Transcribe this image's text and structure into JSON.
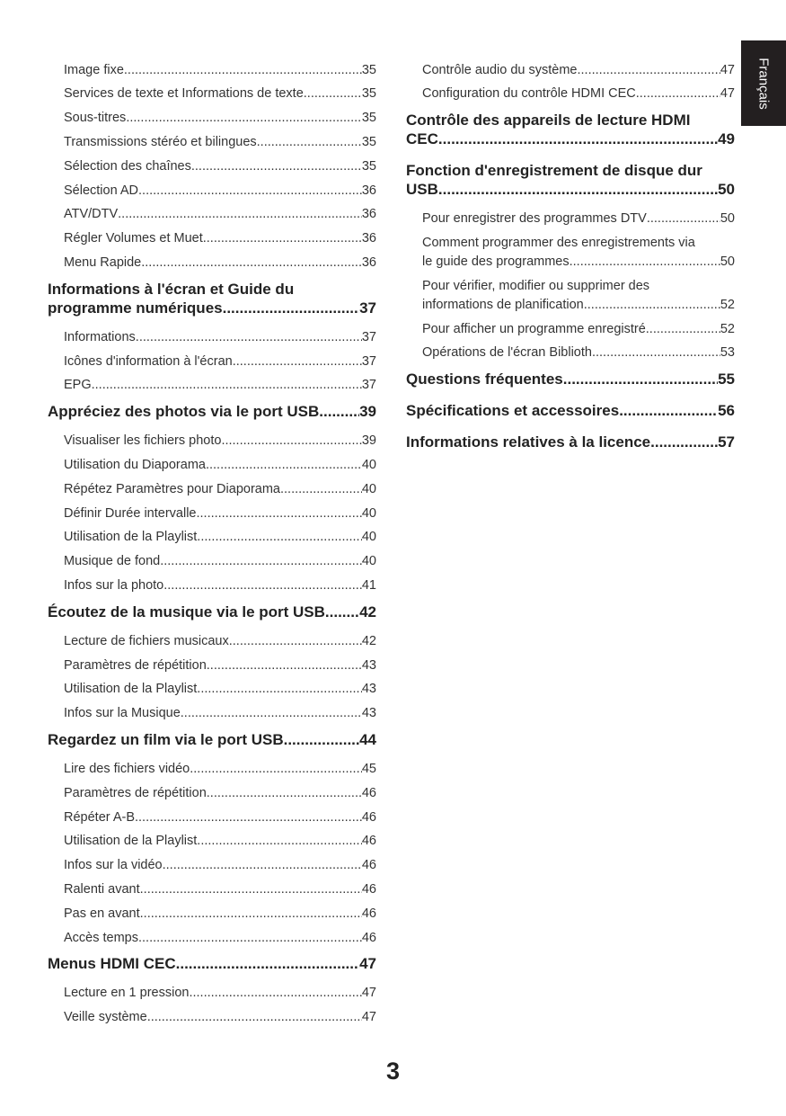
{
  "side_tab": {
    "label": "Français"
  },
  "page_number": "3",
  "left": [
    {
      "type": "item",
      "title": "Image fixe",
      "page": "35"
    },
    {
      "type": "item",
      "title": "Services de texte et Informations de texte",
      "page": "35"
    },
    {
      "type": "item",
      "title": "Sous-titres",
      "page": "35"
    },
    {
      "type": "item",
      "title": "Transmissions stéréo et bilingues",
      "page": "35"
    },
    {
      "type": "item",
      "title": "Sélection des chaînes",
      "page": "35"
    },
    {
      "type": "item",
      "title": "Sélection AD",
      "page": "36"
    },
    {
      "type": "item",
      "title": "ATV/DTV",
      "page": "36"
    },
    {
      "type": "item",
      "title": "Régler Volumes et Muet",
      "page": "36"
    },
    {
      "type": "item",
      "title": "Menu Rapide",
      "page": "36"
    },
    {
      "type": "heading",
      "title": "Informations à l'écran et Guide du",
      "title2": "programme numériques",
      "page": "37"
    },
    {
      "type": "item",
      "title": "Informations",
      "page": "37"
    },
    {
      "type": "item",
      "title": "Icônes d'information à l'écran",
      "page": "37"
    },
    {
      "type": "item",
      "title": "EPG",
      "page": "37"
    },
    {
      "type": "heading",
      "title": "Appréciez des photos via le port USB",
      "page": "39"
    },
    {
      "type": "item",
      "title": "Visualiser les fichiers photo",
      "page": "39"
    },
    {
      "type": "item",
      "title": "Utilisation du Diaporama",
      "page": "40"
    },
    {
      "type": "item",
      "title": "Répétez Paramètres pour Diaporama",
      "page": "40"
    },
    {
      "type": "item",
      "title": "Définir Durée intervalle",
      "page": "40"
    },
    {
      "type": "item",
      "title": "Utilisation de la Playlist",
      "page": "40"
    },
    {
      "type": "item",
      "title": "Musique de fond",
      "page": "40"
    },
    {
      "type": "item",
      "title": "Infos sur la photo",
      "page": "41"
    },
    {
      "type": "heading",
      "title": "Écoutez de la musique via le port USB",
      "page": "42"
    },
    {
      "type": "item",
      "title": "Lecture de fichiers musicaux",
      "page": "42"
    },
    {
      "type": "item",
      "title": "Paramètres de répétition",
      "page": "43"
    },
    {
      "type": "item",
      "title": "Utilisation de la Playlist",
      "page": "43"
    },
    {
      "type": "item",
      "title": "Infos sur la Musique",
      "page": "43"
    },
    {
      "type": "heading",
      "title": "Regardez un film via le port USB",
      "page": "44"
    },
    {
      "type": "item",
      "title": "Lire des fichiers vidéo",
      "page": "45"
    },
    {
      "type": "item",
      "title": "Paramètres de répétition",
      "page": "46"
    },
    {
      "type": "item",
      "title": "Répéter A-B",
      "page": "46"
    },
    {
      "type": "item",
      "title": "Utilisation de la Playlist",
      "page": "46"
    },
    {
      "type": "item",
      "title": "Infos sur la vidéo",
      "page": "46"
    },
    {
      "type": "item",
      "title": "Ralenti avant",
      "page": "46"
    },
    {
      "type": "item",
      "title": "Pas en avant",
      "page": "46"
    },
    {
      "type": "item",
      "title": "Accès temps",
      "page": "46"
    },
    {
      "type": "heading",
      "title": "Menus HDMI CEC",
      "page": "47"
    },
    {
      "type": "item",
      "title": "Lecture en 1 pression",
      "page": "47"
    },
    {
      "type": "item",
      "title": "Veille système",
      "page": "47"
    }
  ],
  "right": [
    {
      "type": "item",
      "title": "Contrôle audio du système",
      "page": "47"
    },
    {
      "type": "item",
      "title": "Configuration du contrôle HDMI CEC",
      "page": "47"
    },
    {
      "type": "heading",
      "title": "Contrôle des appareils de lecture HDMI",
      "title2": "CEC",
      "page": "49"
    },
    {
      "type": "heading",
      "title": "Fonction d'enregistrement de disque dur",
      "title2": "USB",
      "page": "50"
    },
    {
      "type": "item",
      "title": "Pour enregistrer des programmes DTV",
      "page": "50"
    },
    {
      "type": "item",
      "title": "Comment programmer des enregistrements via",
      "title2": "le guide des programmes",
      "page": "50"
    },
    {
      "type": "item",
      "title": "Pour vérifier, modifier ou supprimer des",
      "title2": "informations de planification",
      "page": "52"
    },
    {
      "type": "item",
      "title": "Pour afficher un programme enregistré",
      "page": "52"
    },
    {
      "type": "item",
      "title": "Opérations de l'écran Biblioth.",
      "page": "53"
    },
    {
      "type": "heading",
      "title": "Questions fréquentes",
      "page": "55"
    },
    {
      "type": "heading",
      "title": "Spécifications et accessoires",
      "page": "56"
    },
    {
      "type": "heading",
      "title": "Informations relatives à la licence",
      "page": "57"
    }
  ]
}
